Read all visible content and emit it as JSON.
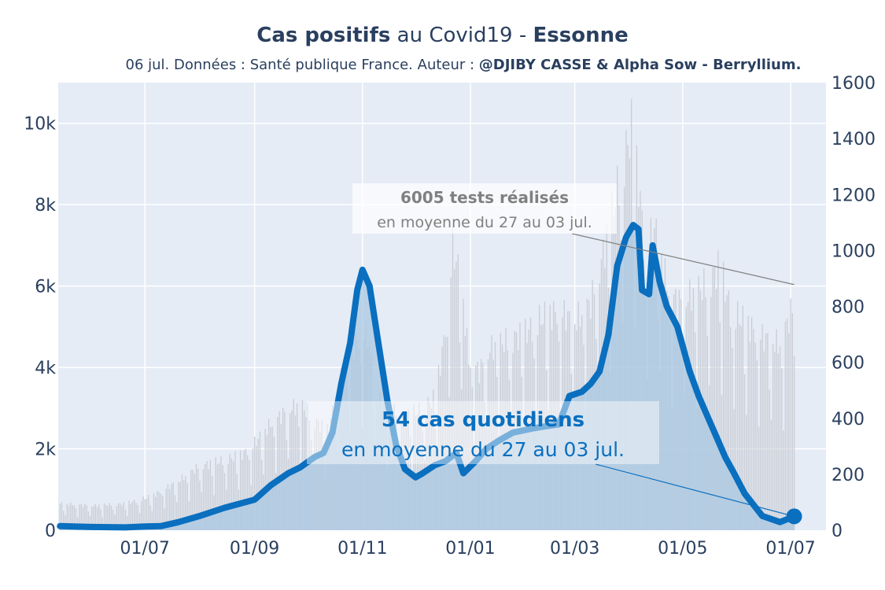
{
  "header": {
    "title_bold1": "Cas positifs",
    "title_mid": " au Covid19 - ",
    "title_bold2": "Essonne",
    "subtitle_plain": "06 jul. Données : Santé publique France. Auteur : ",
    "subtitle_bold": "@DJIBY CASSE & Alpha Sow - Berryllium."
  },
  "annotations": {
    "tests_value": "6005 tests réalisés",
    "tests_period": "en moyenne du 27 au 03 jul.",
    "cases_value": "54 cas quotidiens",
    "cases_period": "en moyenne du 27 au 03 jul."
  },
  "colors": {
    "cases_line": "#0a6fbf",
    "cases_fill": "#a9c8e2",
    "tests_bars": "#c9ccd4",
    "plot_bg": "#e5ecf6",
    "text": "#2a3f5f",
    "annotation_grey": "#808080"
  },
  "chart_data": {
    "type": "line",
    "x_axis": {
      "kind": "date",
      "range": [
        "2020-05-13",
        "2021-07-21"
      ],
      "tick_dates": [
        "2020-07-01",
        "2020-09-01",
        "2020-11-01",
        "2021-01-01",
        "2021-03-01",
        "2021-05-01",
        "2021-07-01"
      ],
      "tick_labels": [
        "01/07",
        "01/09",
        "01/11",
        "01/01",
        "01/03",
        "01/05",
        "01/07"
      ]
    },
    "y_left": {
      "range": [
        0,
        11000
      ],
      "tick_values": [
        0,
        2000,
        4000,
        6000,
        8000,
        10000
      ],
      "tick_labels": [
        "0",
        "2k",
        "4k",
        "6k",
        "8k",
        "10k"
      ]
    },
    "y_right": {
      "range": [
        0,
        1600
      ],
      "tick_values": [
        0,
        200,
        400,
        600,
        800,
        1000,
        1200,
        1400,
        1600
      ],
      "tick_labels": [
        "0",
        "200",
        "400",
        "600",
        "800",
        "1000",
        "1200",
        "1400",
        "1600"
      ]
    },
    "grid": true,
    "series": [
      {
        "kind": "bars-daily",
        "axis": "left",
        "points": [
          [
            "2020-05-14",
            700
          ],
          [
            "2020-06-01",
            650
          ],
          [
            "2020-06-20",
            700
          ],
          [
            "2020-07-05",
            900
          ],
          [
            "2020-07-20",
            1300
          ],
          [
            "2020-08-01",
            1700
          ],
          [
            "2020-08-15",
            1850
          ],
          [
            "2020-08-25",
            2000
          ],
          [
            "2020-09-01",
            2300
          ],
          [
            "2020-09-10",
            2800
          ],
          [
            "2020-09-20",
            3200
          ],
          [
            "2020-09-27",
            3300
          ],
          [
            "2020-10-05",
            2900
          ],
          [
            "2020-10-12",
            2600
          ],
          [
            "2020-10-20",
            4000
          ],
          [
            "2020-10-28",
            5000
          ],
          [
            "2020-11-04",
            5200
          ],
          [
            "2020-11-09",
            3500
          ],
          [
            "2020-11-15",
            3200
          ],
          [
            "2020-11-25",
            3000
          ],
          [
            "2020-12-05",
            3200
          ],
          [
            "2020-12-12",
            3500
          ],
          [
            "2020-12-17",
            5000
          ],
          [
            "2020-12-22",
            7500
          ],
          [
            "2020-12-27",
            6500
          ],
          [
            "2020-12-31",
            4500
          ],
          [
            "2021-01-06",
            4200
          ],
          [
            "2021-01-12",
            4800
          ],
          [
            "2021-01-22",
            5000
          ],
          [
            "2021-02-01",
            5200
          ],
          [
            "2021-02-10",
            5600
          ],
          [
            "2021-02-20",
            5800
          ],
          [
            "2021-03-01",
            5500
          ],
          [
            "2021-03-10",
            6000
          ],
          [
            "2021-03-18",
            7500
          ],
          [
            "2021-03-25",
            9000
          ],
          [
            "2021-03-30",
            10000
          ],
          [
            "2021-04-02",
            10600
          ],
          [
            "2021-04-06",
            9200
          ],
          [
            "2021-04-10",
            7200
          ],
          [
            "2021-04-15",
            8000
          ],
          [
            "2021-04-22",
            6500
          ],
          [
            "2021-04-28",
            6000
          ],
          [
            "2021-05-05",
            6200
          ],
          [
            "2021-05-15",
            6500
          ],
          [
            "2021-05-22",
            7000
          ],
          [
            "2021-05-28",
            5800
          ],
          [
            "2021-06-05",
            5500
          ],
          [
            "2021-06-15",
            5100
          ],
          [
            "2021-06-25",
            4900
          ],
          [
            "2021-06-30",
            5600
          ],
          [
            "2021-07-03",
            6000
          ]
        ]
      },
      {
        "kind": "line-area",
        "axis": "left",
        "points": [
          [
            "2020-05-14",
            100
          ],
          [
            "2020-06-01",
            80
          ],
          [
            "2020-06-20",
            70
          ],
          [
            "2020-07-01",
            90
          ],
          [
            "2020-07-10",
            100
          ],
          [
            "2020-07-20",
            200
          ],
          [
            "2020-08-01",
            350
          ],
          [
            "2020-08-15",
            550
          ],
          [
            "2020-09-01",
            750
          ],
          [
            "2020-09-10",
            1100
          ],
          [
            "2020-09-20",
            1400
          ],
          [
            "2020-09-27",
            1550
          ],
          [
            "2020-10-05",
            1800
          ],
          [
            "2020-10-10",
            1900
          ],
          [
            "2020-10-15",
            2400
          ],
          [
            "2020-10-20",
            3600
          ],
          [
            "2020-10-25",
            4600
          ],
          [
            "2020-10-29",
            5900
          ],
          [
            "2020-11-01",
            6400
          ],
          [
            "2020-11-05",
            6000
          ],
          [
            "2020-11-10",
            4600
          ],
          [
            "2020-11-15",
            3200
          ],
          [
            "2020-11-20",
            2100
          ],
          [
            "2020-11-25",
            1500
          ],
          [
            "2020-12-01",
            1300
          ],
          [
            "2020-12-05",
            1400
          ],
          [
            "2020-12-12",
            1600
          ],
          [
            "2020-12-18",
            1700
          ],
          [
            "2020-12-24",
            1900
          ],
          [
            "2020-12-28",
            1400
          ],
          [
            "2021-01-04",
            1700
          ],
          [
            "2021-01-10",
            2000
          ],
          [
            "2021-01-17",
            2200
          ],
          [
            "2021-01-25",
            2400
          ],
          [
            "2021-02-05",
            2500
          ],
          [
            "2021-02-12",
            2550
          ],
          [
            "2021-02-20",
            2600
          ],
          [
            "2021-02-26",
            3300
          ],
          [
            "2021-03-05",
            3400
          ],
          [
            "2021-03-10",
            3600
          ],
          [
            "2021-03-15",
            3900
          ],
          [
            "2021-03-20",
            4800
          ],
          [
            "2021-03-25",
            6500
          ],
          [
            "2021-03-30",
            7200
          ],
          [
            "2021-04-03",
            7500
          ],
          [
            "2021-04-06",
            7400
          ],
          [
            "2021-04-08",
            5900
          ],
          [
            "2021-04-12",
            5800
          ],
          [
            "2021-04-14",
            7000
          ],
          [
            "2021-04-18",
            6100
          ],
          [
            "2021-04-22",
            5500
          ],
          [
            "2021-04-28",
            5000
          ],
          [
            "2021-05-05",
            3900
          ],
          [
            "2021-05-10",
            3300
          ],
          [
            "2021-05-15",
            2800
          ],
          [
            "2021-05-20",
            2300
          ],
          [
            "2021-05-25",
            1800
          ],
          [
            "2021-05-30",
            1400
          ],
          [
            "2021-06-05",
            900
          ],
          [
            "2021-06-15",
            350
          ],
          [
            "2021-06-25",
            200
          ],
          [
            "2021-07-03",
            340
          ]
        ]
      }
    ],
    "annotations": [
      {
        "label": "tests",
        "anchor": [
          "2021-07-03",
          878
        ],
        "axis": "right"
      },
      {
        "label": "cases",
        "anchor": [
          "2021-07-03",
          340
        ],
        "axis": "left"
      }
    ]
  }
}
